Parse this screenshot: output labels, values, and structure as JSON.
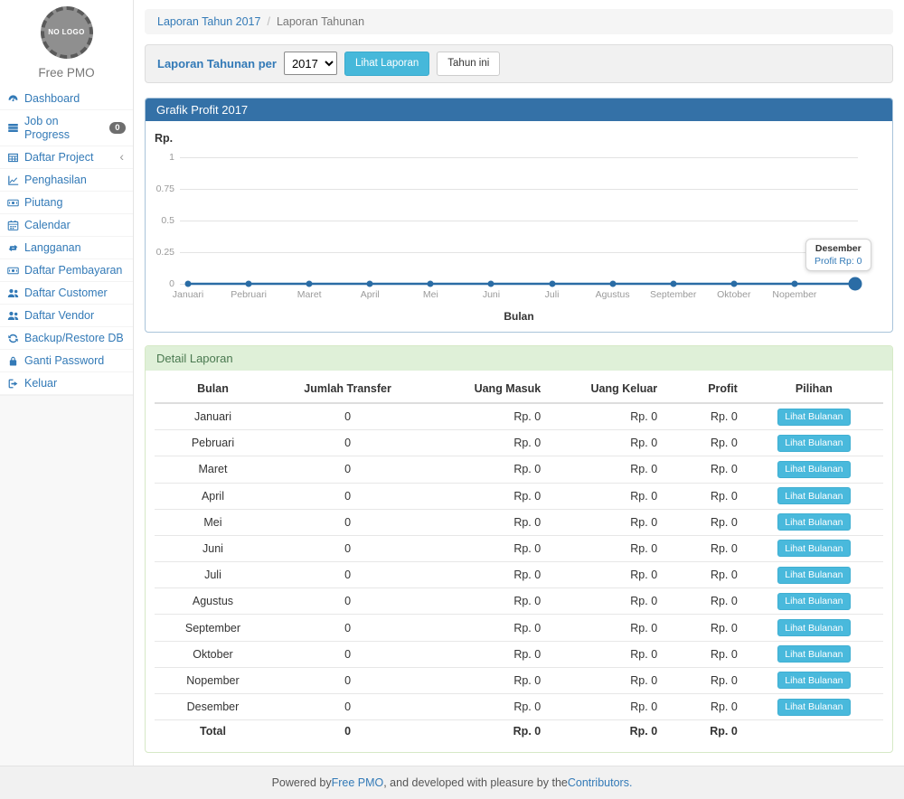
{
  "colors": {
    "accent_blue": "#337ab7",
    "panel_primary_header": "#3471a7",
    "panel_primary_border": "#a9c4da",
    "panel_success_bg": "#dff0d8",
    "panel_success_text": "#4a7950",
    "info_button": "#46b8da",
    "line_color": "#2a6ca5",
    "badge_bg": "#6e6e6e"
  },
  "sidebar": {
    "logo_text": "NO LOGO",
    "brand": "Free PMO",
    "items": [
      {
        "label": "Dashboard",
        "icon": "gauge-icon"
      },
      {
        "label": "Job on Progress",
        "icon": "tasks-icon",
        "badge": "0"
      },
      {
        "label": "Daftar Project",
        "icon": "table-icon",
        "chevron": true
      },
      {
        "label": "Penghasilan",
        "icon": "chart-line-icon"
      },
      {
        "label": "Piutang",
        "icon": "money-icon"
      },
      {
        "label": "Calendar",
        "icon": "calendar-icon"
      },
      {
        "label": "Langganan",
        "icon": "retweet-icon"
      },
      {
        "label": "Daftar Pembayaran",
        "icon": "money-icon"
      },
      {
        "label": "Daftar Customer",
        "icon": "users-icon"
      },
      {
        "label": "Daftar Vendor",
        "icon": "users-icon"
      },
      {
        "label": "Backup/Restore DB",
        "icon": "refresh-icon"
      },
      {
        "label": "Ganti Password",
        "icon": "lock-icon"
      },
      {
        "label": "Keluar",
        "icon": "sign-out-icon"
      }
    ]
  },
  "breadcrumb": {
    "link": "Laporan Tahun 2017",
    "separator": "/",
    "current": "Laporan Tahunan"
  },
  "filter": {
    "label": "Laporan Tahunan per",
    "selected_year": "2017",
    "year_options": [
      "2017"
    ],
    "submit_label": "Lihat Laporan",
    "current_year_label": "Tahun ini"
  },
  "chart_panel": {
    "title": "Grafik Profit 2017"
  },
  "chart_data": {
    "type": "line",
    "title": "Grafik Profit 2017",
    "xlabel": "Bulan",
    "ylabel": "Rp.",
    "categories": [
      "Januari",
      "Pebruari",
      "Maret",
      "April",
      "Mei",
      "Juni",
      "Juli",
      "Agustus",
      "September",
      "Oktober",
      "Nopember",
      "Desember"
    ],
    "series": [
      {
        "name": "Profit",
        "values": [
          0,
          0,
          0,
          0,
          0,
          0,
          0,
          0,
          0,
          0,
          0,
          0
        ]
      }
    ],
    "ylim": [
      0,
      1
    ],
    "yticks": [
      1,
      0.75,
      0.5,
      0.25,
      0
    ],
    "grid": true,
    "legend": false,
    "last_x_label_hidden": true,
    "highlighted_point_index": 11,
    "tooltip": {
      "title": "Desember",
      "text": "Profit Rp: 0"
    }
  },
  "report_panel": {
    "title": "Detail Laporan",
    "columns": [
      "Bulan",
      "Jumlah Transfer",
      "Uang Masuk",
      "Uang Keluar",
      "Profit",
      "Pilihan"
    ],
    "action_label": "Lihat Bulanan",
    "rows": [
      {
        "bulan": "Januari",
        "jumlah_transfer": "0",
        "uang_masuk": "Rp. 0",
        "uang_keluar": "Rp. 0",
        "profit": "Rp. 0"
      },
      {
        "bulan": "Pebruari",
        "jumlah_transfer": "0",
        "uang_masuk": "Rp. 0",
        "uang_keluar": "Rp. 0",
        "profit": "Rp. 0"
      },
      {
        "bulan": "Maret",
        "jumlah_transfer": "0",
        "uang_masuk": "Rp. 0",
        "uang_keluar": "Rp. 0",
        "profit": "Rp. 0"
      },
      {
        "bulan": "April",
        "jumlah_transfer": "0",
        "uang_masuk": "Rp. 0",
        "uang_keluar": "Rp. 0",
        "profit": "Rp. 0"
      },
      {
        "bulan": "Mei",
        "jumlah_transfer": "0",
        "uang_masuk": "Rp. 0",
        "uang_keluar": "Rp. 0",
        "profit": "Rp. 0"
      },
      {
        "bulan": "Juni",
        "jumlah_transfer": "0",
        "uang_masuk": "Rp. 0",
        "uang_keluar": "Rp. 0",
        "profit": "Rp. 0"
      },
      {
        "bulan": "Juli",
        "jumlah_transfer": "0",
        "uang_masuk": "Rp. 0",
        "uang_keluar": "Rp. 0",
        "profit": "Rp. 0"
      },
      {
        "bulan": "Agustus",
        "jumlah_transfer": "0",
        "uang_masuk": "Rp. 0",
        "uang_keluar": "Rp. 0",
        "profit": "Rp. 0"
      },
      {
        "bulan": "September",
        "jumlah_transfer": "0",
        "uang_masuk": "Rp. 0",
        "uang_keluar": "Rp. 0",
        "profit": "Rp. 0"
      },
      {
        "bulan": "Oktober",
        "jumlah_transfer": "0",
        "uang_masuk": "Rp. 0",
        "uang_keluar": "Rp. 0",
        "profit": "Rp. 0"
      },
      {
        "bulan": "Nopember",
        "jumlah_transfer": "0",
        "uang_masuk": "Rp. 0",
        "uang_keluar": "Rp. 0",
        "profit": "Rp. 0"
      },
      {
        "bulan": "Desember",
        "jumlah_transfer": "0",
        "uang_masuk": "Rp. 0",
        "uang_keluar": "Rp. 0",
        "profit": "Rp. 0"
      }
    ],
    "total_row": {
      "bulan": "Total",
      "jumlah_transfer": "0",
      "uang_masuk": "Rp. 0",
      "uang_keluar": "Rp. 0",
      "profit": "Rp. 0"
    }
  },
  "footer": {
    "powered_prefix": "Powered by ",
    "brand_link": "Free PMO",
    "middle_text": ", and developed with pleasure by the ",
    "contributors_link": "Contributors."
  }
}
